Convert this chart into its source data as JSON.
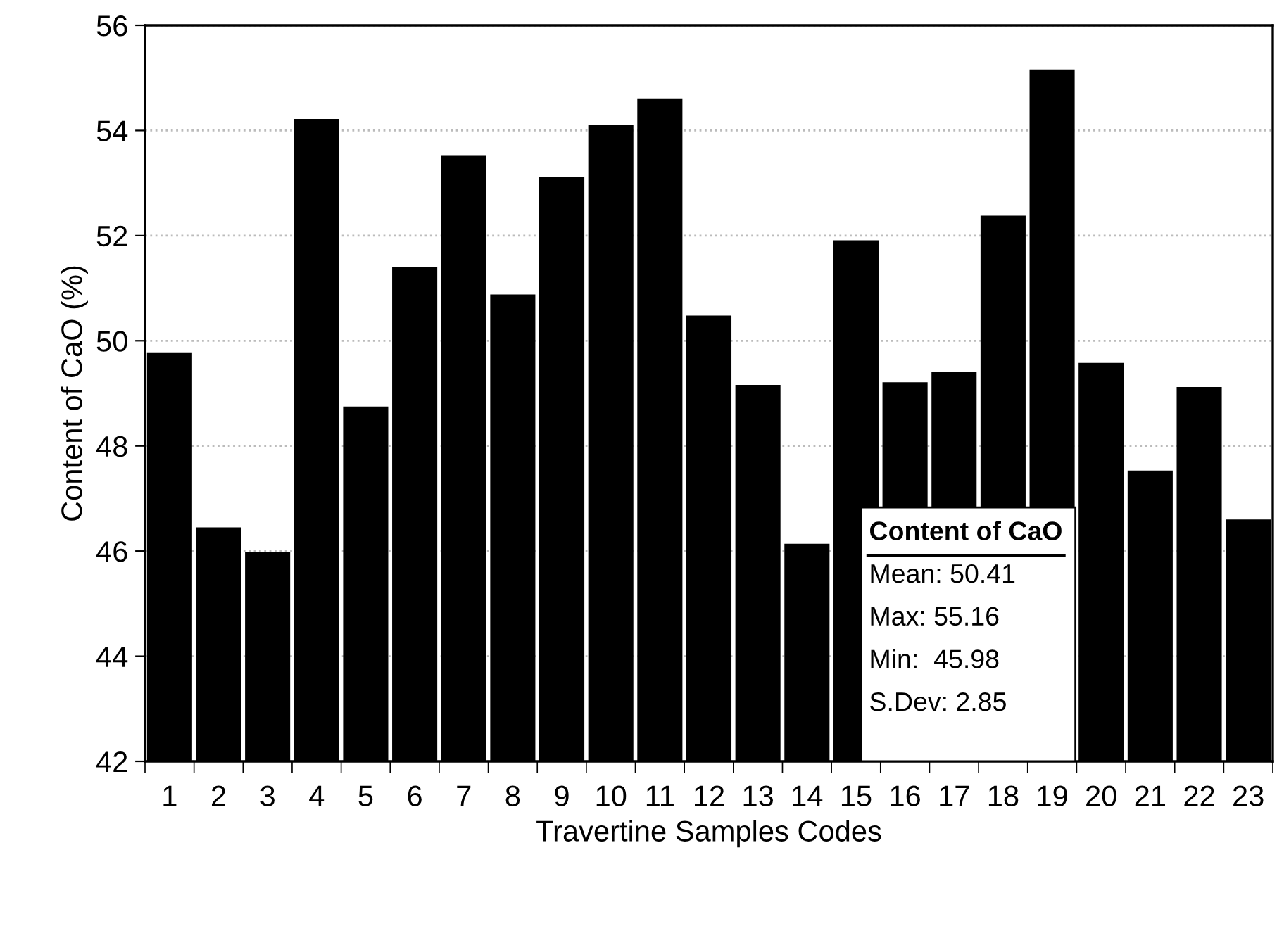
{
  "chart_data": {
    "type": "bar",
    "xlabel": "Travertine Samples Codes",
    "ylabel": "Content of CaO (%)",
    "categories": [
      "1",
      "2",
      "3",
      "4",
      "5",
      "6",
      "7",
      "8",
      "9",
      "10",
      "11",
      "12",
      "13",
      "14",
      "15",
      "16",
      "17",
      "18",
      "19",
      "20",
      "21",
      "22",
      "23"
    ],
    "values": [
      49.78,
      46.45,
      45.98,
      54.22,
      48.75,
      51.4,
      53.53,
      50.88,
      53.12,
      54.1,
      54.61,
      50.48,
      49.16,
      46.14,
      51.91,
      49.21,
      49.4,
      52.38,
      55.16,
      49.58,
      47.53,
      49.12,
      46.6
    ],
    "color": "#000000",
    "ylim": [
      42,
      56
    ],
    "yticks": [
      42,
      44,
      46,
      48,
      50,
      52,
      54,
      56
    ],
    "grid": "y",
    "annotations": [
      "Content of CaO",
      "Mean: 50.41",
      "Max: 55.16",
      "Min:  45.98",
      "S.Dev: 2.85"
    ]
  }
}
